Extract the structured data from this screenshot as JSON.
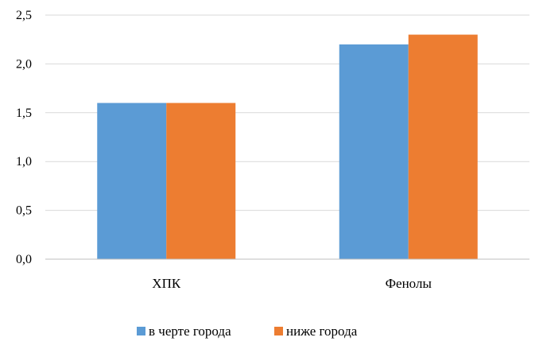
{
  "chart_data": {
    "type": "bar",
    "categories": [
      "ХПК",
      "Фенолы"
    ],
    "series": [
      {
        "name": "в черте города",
        "values": [
          1.6,
          2.2
        ],
        "color": "#5b9bd5"
      },
      {
        "name": "ниже города",
        "values": [
          1.6,
          2.3
        ],
        "color": "#ed7d31"
      }
    ],
    "ylim": [
      0,
      2.5
    ],
    "yticks": [
      0,
      0.5,
      1.0,
      1.5,
      2.0,
      2.5
    ],
    "ytick_labels": [
      "0,0",
      "0,5",
      "1,0",
      "1,5",
      "2,0",
      "2,5"
    ],
    "grid": true,
    "legend_position": "bottom"
  }
}
